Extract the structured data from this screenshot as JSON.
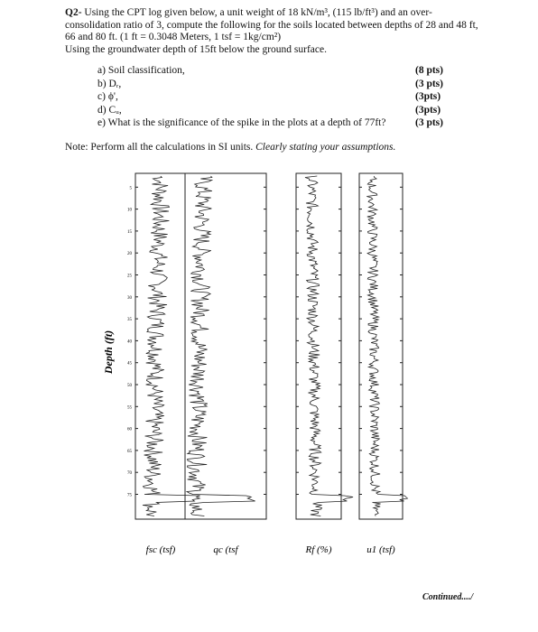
{
  "question": {
    "number": "Q2-",
    "intro": "Using the CPT log given below, a unit weight of 18 kN/m³, (115 lb/ft³) and an over-consolidation ratio of 3, compute the following for the soils located between depths of 28 and 48 ft, 66 and 80 ft. (1 ft = 0.3048 Meters, 1 tsf = 1kg/cm²)",
    "groundwater": "Using the groundwater depth of 15ft below the ground surface.",
    "parts": [
      {
        "label": "a)",
        "text": "Soil classification,",
        "points": "(8 pts)"
      },
      {
        "label": "b)",
        "text": "Dᵣ,",
        "points": "(3 pts)"
      },
      {
        "label": "c)",
        "text": "ϕ',",
        "points": "(3pts)"
      },
      {
        "label": "d)",
        "text": "Cᵤ,",
        "points": "(3pts)"
      },
      {
        "label": "e)",
        "text": "What is the significance of the spike in the plots at a depth of 77ft?",
        "points": "(3 pts)"
      }
    ],
    "note": "Note: Perform all the calculations in SI units.",
    "note_emphasis": "Clearly stating your assumptions."
  },
  "figure": {
    "y_label": "Depth (ft)",
    "depth_ticks": [
      5,
      10,
      15,
      20,
      25,
      30,
      35,
      40,
      45,
      50,
      55,
      60,
      65,
      70,
      75
    ],
    "panel_labels": [
      "fsc (tsf)",
      "qc (tsf",
      "Rf (%)",
      "u1 (tsf)"
    ]
  },
  "footer": {
    "continued": "Continued..../"
  }
}
